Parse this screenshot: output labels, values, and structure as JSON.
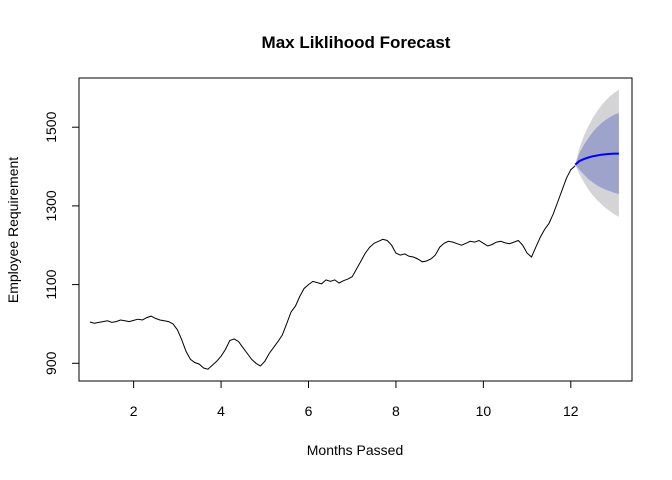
{
  "chart_data": {
    "type": "line",
    "title": "Max Liklihood Forecast",
    "xlabel": "Months Passed",
    "ylabel": "Employee Requirement",
    "xlim": [
      0.75,
      13.4
    ],
    "ylim": [
      855,
      1625
    ],
    "x_ticks": [
      2,
      4,
      6,
      8,
      10,
      12
    ],
    "x_tick_labels": [
      "2",
      "4",
      "6",
      "8",
      "10",
      "12"
    ],
    "y_ticks": [
      900,
      1100,
      1300,
      1500
    ],
    "y_tick_labels": [
      "900",
      "1100",
      "1300",
      "1500"
    ],
    "grid": false,
    "series": [
      {
        "color": "#000000",
        "x": [
          1.0,
          1.1,
          1.2,
          1.3,
          1.4,
          1.5,
          1.6,
          1.7,
          1.8,
          1.9,
          2.0,
          2.1,
          2.2,
          2.3,
          2.4,
          2.5,
          2.6,
          2.7,
          2.8,
          2.9,
          3.0,
          3.1,
          3.2,
          3.3,
          3.4,
          3.5,
          3.6,
          3.7,
          3.8,
          3.9,
          4.0,
          4.1,
          4.2,
          4.3,
          4.4,
          4.5,
          4.6,
          4.7,
          4.8,
          4.9,
          5.0,
          5.1,
          5.2,
          5.3,
          5.4,
          5.5,
          5.6,
          5.7,
          5.8,
          5.9,
          6.0,
          6.1,
          6.2,
          6.3,
          6.4,
          6.5,
          6.6,
          6.7,
          6.8,
          6.9,
          7.0,
          7.1,
          7.2,
          7.3,
          7.4,
          7.5,
          7.6,
          7.7,
          7.8,
          7.9,
          8.0,
          8.1,
          8.2,
          8.3,
          8.4,
          8.5,
          8.6,
          8.7,
          8.8,
          8.9,
          9.0,
          9.1,
          9.2,
          9.3,
          9.4,
          9.5,
          9.6,
          9.7,
          9.8,
          9.9,
          10.0,
          10.1,
          10.2,
          10.3,
          10.4,
          10.5,
          10.6,
          10.7,
          10.8,
          10.9,
          11.0,
          11.1,
          11.2,
          11.3,
          11.4,
          11.5,
          11.6,
          11.7,
          11.8,
          11.9,
          12.0,
          12.1
        ],
        "y": [
          1005,
          1002,
          1004,
          1006,
          1008,
          1004,
          1006,
          1010,
          1008,
          1006,
          1009,
          1012,
          1010,
          1016,
          1020,
          1014,
          1010,
          1008,
          1006,
          1000,
          985,
          960,
          930,
          910,
          902,
          898,
          888,
          885,
          895,
          905,
          918,
          935,
          958,
          962,
          955,
          940,
          925,
          910,
          900,
          893,
          905,
          925,
          940,
          955,
          972,
          1000,
          1030,
          1045,
          1070,
          1090,
          1100,
          1108,
          1105,
          1102,
          1112,
          1108,
          1112,
          1104,
          1110,
          1114,
          1120,
          1140,
          1160,
          1180,
          1195,
          1205,
          1210,
          1215,
          1212,
          1200,
          1180,
          1175,
          1178,
          1172,
          1170,
          1165,
          1158,
          1160,
          1165,
          1175,
          1195,
          1205,
          1210,
          1208,
          1204,
          1200,
          1205,
          1210,
          1208,
          1212,
          1205,
          1198,
          1202,
          1208,
          1210,
          1206,
          1204,
          1208,
          1212,
          1200,
          1180,
          1170,
          1195,
          1220,
          1240,
          1255,
          1280,
          1310,
          1340,
          1370,
          1392,
          1402
        ]
      }
    ],
    "forecast": {
      "color": "#0000ff",
      "x": [
        12.1,
        12.2,
        12.3,
        12.4,
        12.5,
        12.6,
        12.7,
        12.8,
        12.9,
        13.0,
        13.1
      ],
      "mean": [
        1405,
        1414,
        1419,
        1423,
        1426,
        1428,
        1430,
        1431,
        1432,
        1433,
        1433
      ],
      "lower80": [
        1405,
        1392,
        1380,
        1368,
        1360,
        1352,
        1346,
        1341,
        1337,
        1333,
        1330
      ],
      "upper80": [
        1405,
        1435,
        1455,
        1472,
        1487,
        1500,
        1510,
        1519,
        1526,
        1532,
        1536
      ],
      "lower95": [
        1405,
        1380,
        1360,
        1342,
        1327,
        1315,
        1304,
        1294,
        1286,
        1278,
        1272
      ],
      "upper95": [
        1405,
        1447,
        1478,
        1502,
        1523,
        1540,
        1555,
        1568,
        1579,
        1588,
        1595
      ],
      "band80_color": "#9ea3cc",
      "band95_color": "#d4d4d7"
    }
  }
}
